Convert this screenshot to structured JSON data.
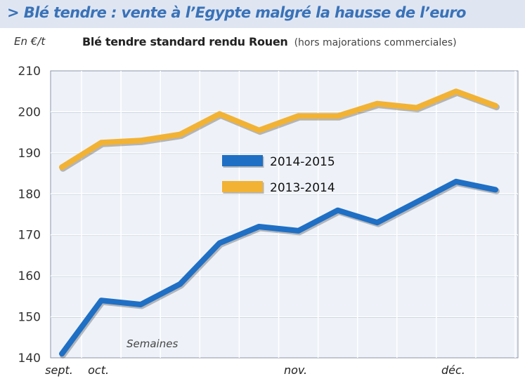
{
  "header": {
    "title": "> Blé tendre : vente à l’Egypte malgré la hausse de l’euro"
  },
  "chart_data": {
    "type": "line",
    "title": "Blé tendre standard rendu Rouen",
    "subtitle": "(hors majorations commerciales)",
    "ylabel": "En €/t",
    "xlabel": "Semaines",
    "ylim": [
      140,
      210
    ],
    "yticks": [
      140,
      150,
      160,
      170,
      180,
      190,
      200,
      210
    ],
    "grid": true,
    "legend_position": "center",
    "x_tick_labels": [
      {
        "label": "sept.",
        "index": 0
      },
      {
        "label": "oct.",
        "index": 1
      },
      {
        "label": "nov.",
        "index": 6
      },
      {
        "label": "déc.",
        "index": 10
      }
    ],
    "series": [
      {
        "name": "2014-2015",
        "color": "#1f6fc5",
        "values": [
          141,
          154,
          153,
          158,
          168,
          172,
          171,
          176,
          173,
          178,
          183,
          181
        ]
      },
      {
        "name": "2013-2014",
        "color": "#f2b233",
        "values": [
          186.5,
          192.5,
          193,
          194.5,
          199.5,
          195.5,
          199,
          199,
          202,
          201,
          205,
          201.5
        ]
      }
    ]
  }
}
